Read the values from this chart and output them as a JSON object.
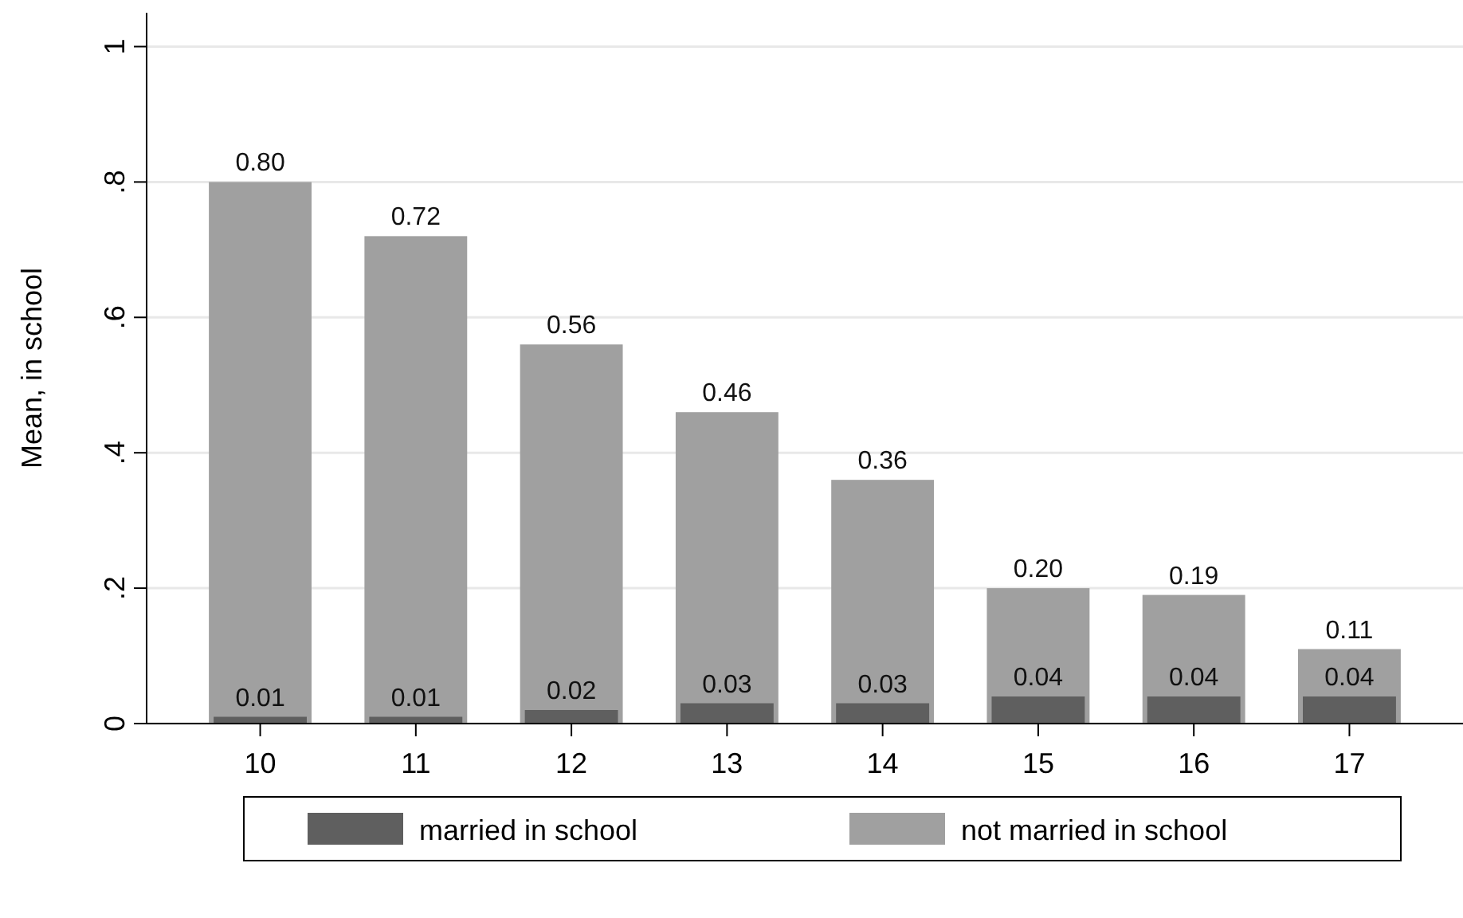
{
  "chart_data": {
    "type": "bar",
    "ylabel": "Mean, in school",
    "categories": [
      "10",
      "11",
      "12",
      "13",
      "14",
      "15",
      "16",
      "17"
    ],
    "series": [
      {
        "name": "married in school",
        "color": "#5f5f5f",
        "values": [
          0.01,
          0.01,
          0.02,
          0.03,
          0.03,
          0.04,
          0.04,
          0.04
        ],
        "value_labels": [
          "0.01",
          "0.01",
          "0.02",
          "0.03",
          "0.03",
          "0.04",
          "0.04",
          "0.04"
        ]
      },
      {
        "name": "not married in school",
        "color": "#a0a0a0",
        "values": [
          0.8,
          0.72,
          0.56,
          0.46,
          0.36,
          0.2,
          0.19,
          0.11
        ],
        "value_labels": [
          "0.80",
          "0.72",
          "0.56",
          "0.46",
          "0.36",
          "0.20",
          "0.19",
          "0.11"
        ]
      }
    ],
    "ylim": [
      0,
      1.05
    ],
    "yticks": [
      0,
      {
        "value": 0.2,
        "label": ".2"
      },
      {
        "value": 0.4,
        "label": ".4"
      },
      {
        "value": 0.6,
        "label": ".6"
      },
      {
        "value": 0.8,
        "label": ".8"
      },
      1
    ],
    "grid": true,
    "legend": "bottom"
  }
}
